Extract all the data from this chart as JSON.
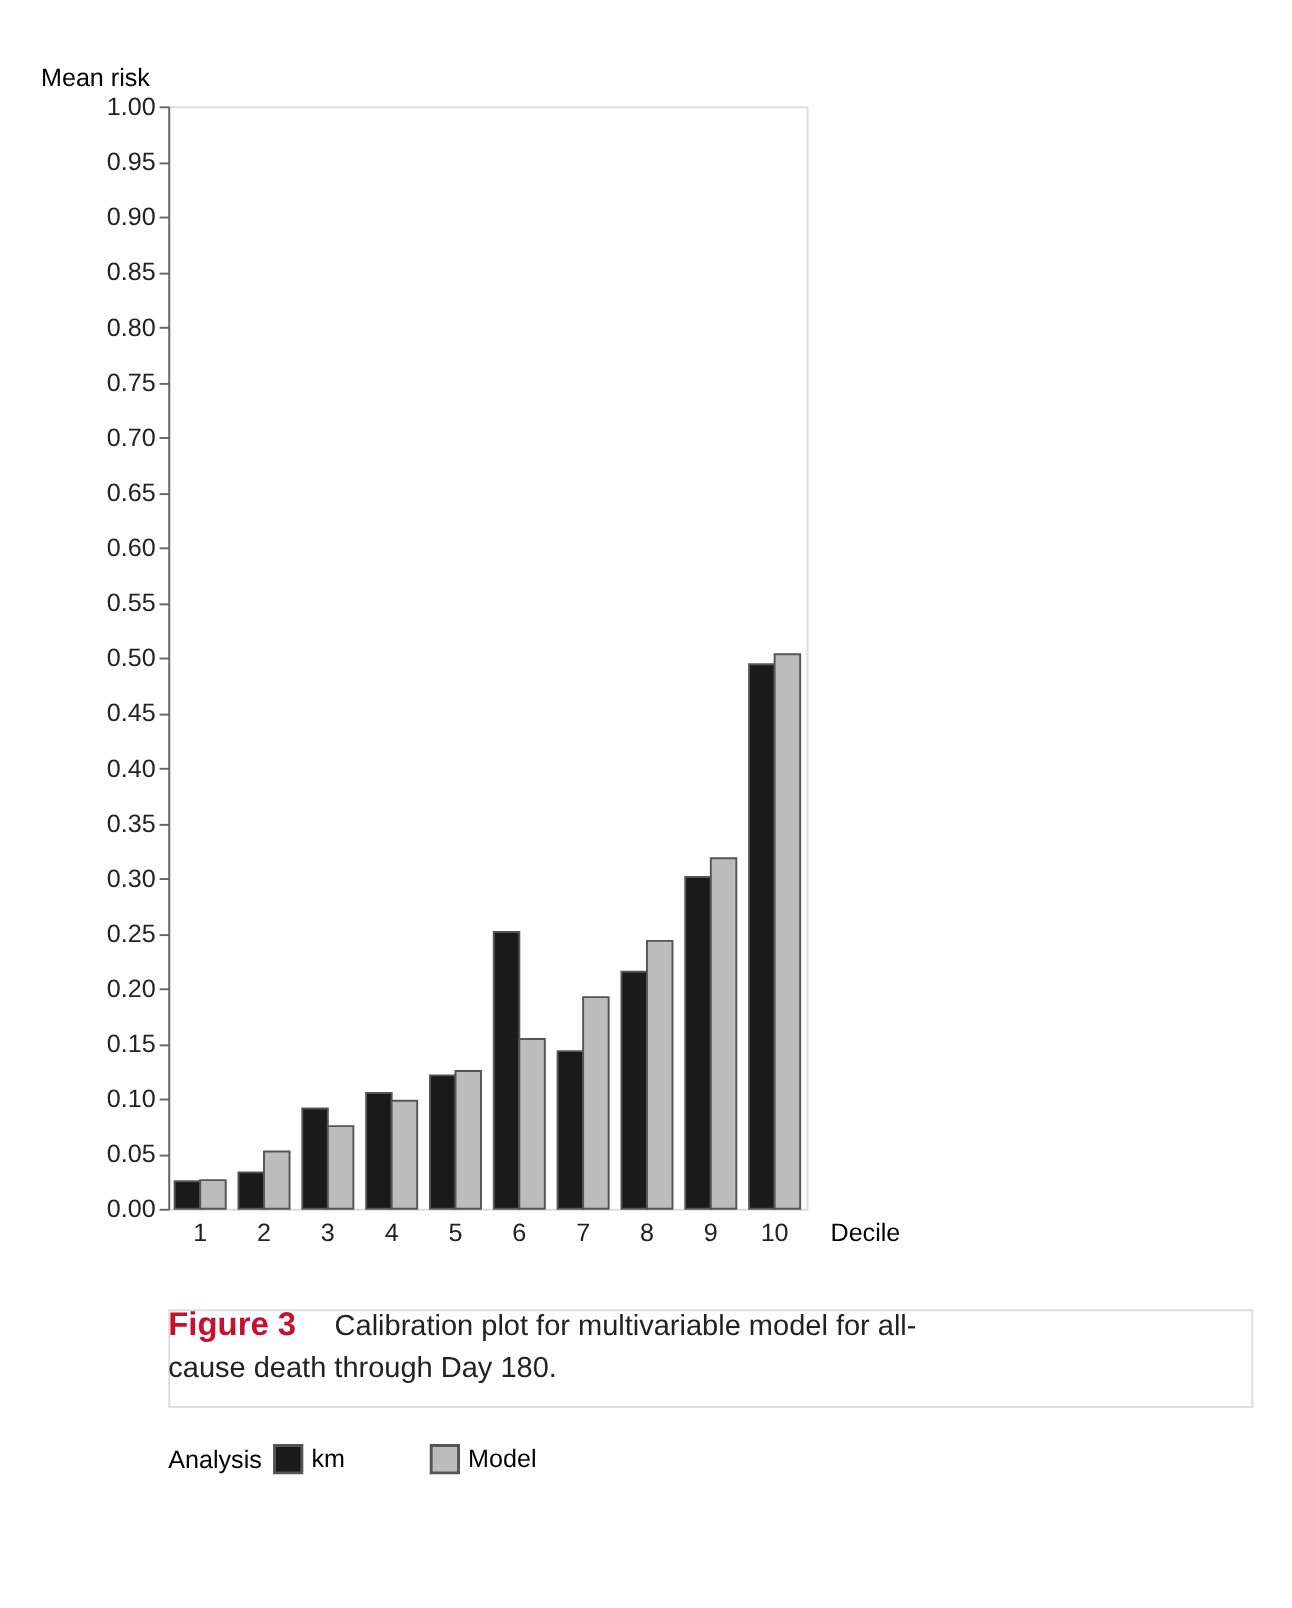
{
  "chart_data": {
    "type": "bar",
    "xlabel": "Decile",
    "ylabel": "Mean risk",
    "legend_title": "Analysis",
    "legend": "bottom",
    "grid": false,
    "categories": [
      "1",
      "2",
      "3",
      "4",
      "5",
      "6",
      "7",
      "8",
      "9",
      "10"
    ],
    "series": [
      {
        "name": "km",
        "color": "#1a1a1a",
        "values": [
          0.025,
          0.033,
          0.091,
          0.105,
          0.121,
          0.251,
          0.143,
          0.215,
          0.301,
          0.494
        ]
      },
      {
        "name": "Model",
        "color": "#bcbcbc",
        "values": [
          0.026,
          0.052,
          0.075,
          0.098,
          0.125,
          0.154,
          0.192,
          0.243,
          0.318,
          0.503
        ]
      }
    ],
    "ylim": [
      0,
      1
    ],
    "yticks": [
      {
        "value": 0,
        "label": "0.00"
      },
      {
        "value": 0.05,
        "label": "0.05"
      },
      {
        "value": 0.1,
        "label": "0.10"
      },
      {
        "value": 0.15,
        "label": "0.15"
      },
      {
        "value": 0.2,
        "label": "0.20"
      },
      {
        "value": 0.25,
        "label": "0.25"
      },
      {
        "value": 0.3,
        "label": "0.30"
      },
      {
        "value": 0.35,
        "label": "0.35"
      },
      {
        "value": 0.4,
        "label": "0.40"
      },
      {
        "value": 0.45,
        "label": "0.45"
      },
      {
        "value": 0.5,
        "label": "0.50"
      },
      {
        "value": 0.55,
        "label": "0.55"
      },
      {
        "value": 0.6,
        "label": "0.60"
      },
      {
        "value": 0.65,
        "label": "0.65"
      },
      {
        "value": 0.7,
        "label": "0.70"
      },
      {
        "value": 0.75,
        "label": "0.75"
      },
      {
        "value": 0.8,
        "label": "0.80"
      },
      {
        "value": 0.85,
        "label": "0.85"
      },
      {
        "value": 0.9,
        "label": "0.90"
      },
      {
        "value": 0.95,
        "label": "0.95"
      },
      {
        "value": 1,
        "label": "1.00"
      }
    ],
    "annotations": [
      "Figure 3",
      "Calibration plot for multivariable model for all-cause death through Day 180."
    ]
  }
}
